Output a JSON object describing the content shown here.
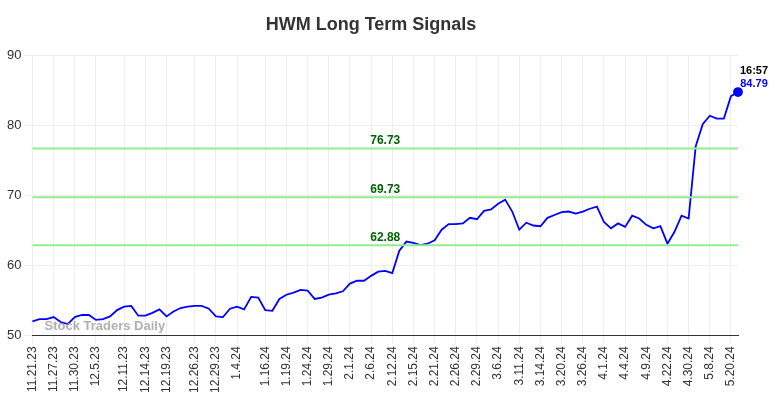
{
  "chart_data": {
    "type": "line",
    "title": "HWM Long Term Signals",
    "watermark": "Stock Traders Daily",
    "time_label": "16:57",
    "categories": [
      "11.21.23",
      null,
      null,
      "11.27.23",
      null,
      null,
      "11.30.23",
      null,
      null,
      "12.5.23",
      null,
      null,
      null,
      "12.11.23",
      null,
      null,
      "12.14.23",
      null,
      null,
      "12.19.23",
      null,
      null,
      null,
      "12.26.23",
      null,
      null,
      "12.29.23",
      null,
      null,
      "1.4.24",
      null,
      null,
      null,
      "1.16.24",
      null,
      null,
      "1.19.24",
      null,
      null,
      "1.24.24",
      null,
      null,
      "1.29.24",
      null,
      null,
      "2.1.24",
      null,
      null,
      "2.6.24",
      null,
      null,
      "2.12.24",
      null,
      null,
      "2.15.24",
      null,
      null,
      "2.21.24",
      null,
      null,
      "2.26.24",
      null,
      null,
      "2.29.24",
      null,
      null,
      "3.6.24",
      null,
      null,
      "3.11.24",
      null,
      null,
      "3.14.24",
      null,
      null,
      "3.20.24",
      null,
      null,
      "3.26.24",
      null,
      null,
      "4.1.24",
      null,
      null,
      "4.4.24",
      null,
      null,
      "4.9.24",
      null,
      null,
      "4.22.24",
      null,
      null,
      "4.30.24",
      null,
      null,
      "5.8.24",
      null,
      null,
      "5.20.24",
      null
    ],
    "values": [
      52.0,
      52.3,
      52.3,
      52.6,
      51.9,
      51.6,
      52.6,
      52.9,
      52.9,
      52.2,
      52.3,
      52.7,
      53.6,
      54.1,
      54.2,
      52.8,
      52.8,
      53.2,
      53.7,
      52.7,
      53.4,
      53.9,
      54.1,
      54.2,
      54.2,
      53.8,
      52.7,
      52.6,
      53.8,
      54.1,
      53.7,
      55.5,
      55.4,
      53.6,
      53.5,
      55.2,
      55.8,
      56.1,
      56.5,
      56.4,
      55.2,
      55.4,
      55.8,
      56.0,
      56.3,
      57.4,
      57.8,
      57.8,
      58.5,
      59.1,
      59.2,
      58.9,
      62.1,
      63.4,
      63.2,
      62.9,
      63.1,
      63.6,
      65.1,
      65.9,
      65.9,
      66.0,
      66.8,
      66.6,
      67.8,
      68.0,
      68.8,
      69.4,
      67.7,
      65.1,
      66.1,
      65.7,
      65.6,
      66.8,
      67.2,
      67.6,
      67.7,
      67.4,
      67.7,
      68.1,
      68.4,
      66.2,
      65.3,
      66.0,
      65.5,
      67.1,
      66.7,
      65.8,
      65.3,
      65.6,
      63.1,
      64.8,
      67.1,
      66.7,
      77.0,
      80.2,
      81.4,
      81.0,
      81.0,
      84.2,
      84.79
    ],
    "color": "#0000ff",
    "reference_lines": [
      62.88,
      69.73,
      76.73
    ],
    "reference_color": "#90ee90",
    "reference_label_color": "#006400",
    "ylim": [
      50,
      90
    ],
    "yticks": [
      50,
      60,
      70,
      80,
      90
    ],
    "grid": true
  }
}
